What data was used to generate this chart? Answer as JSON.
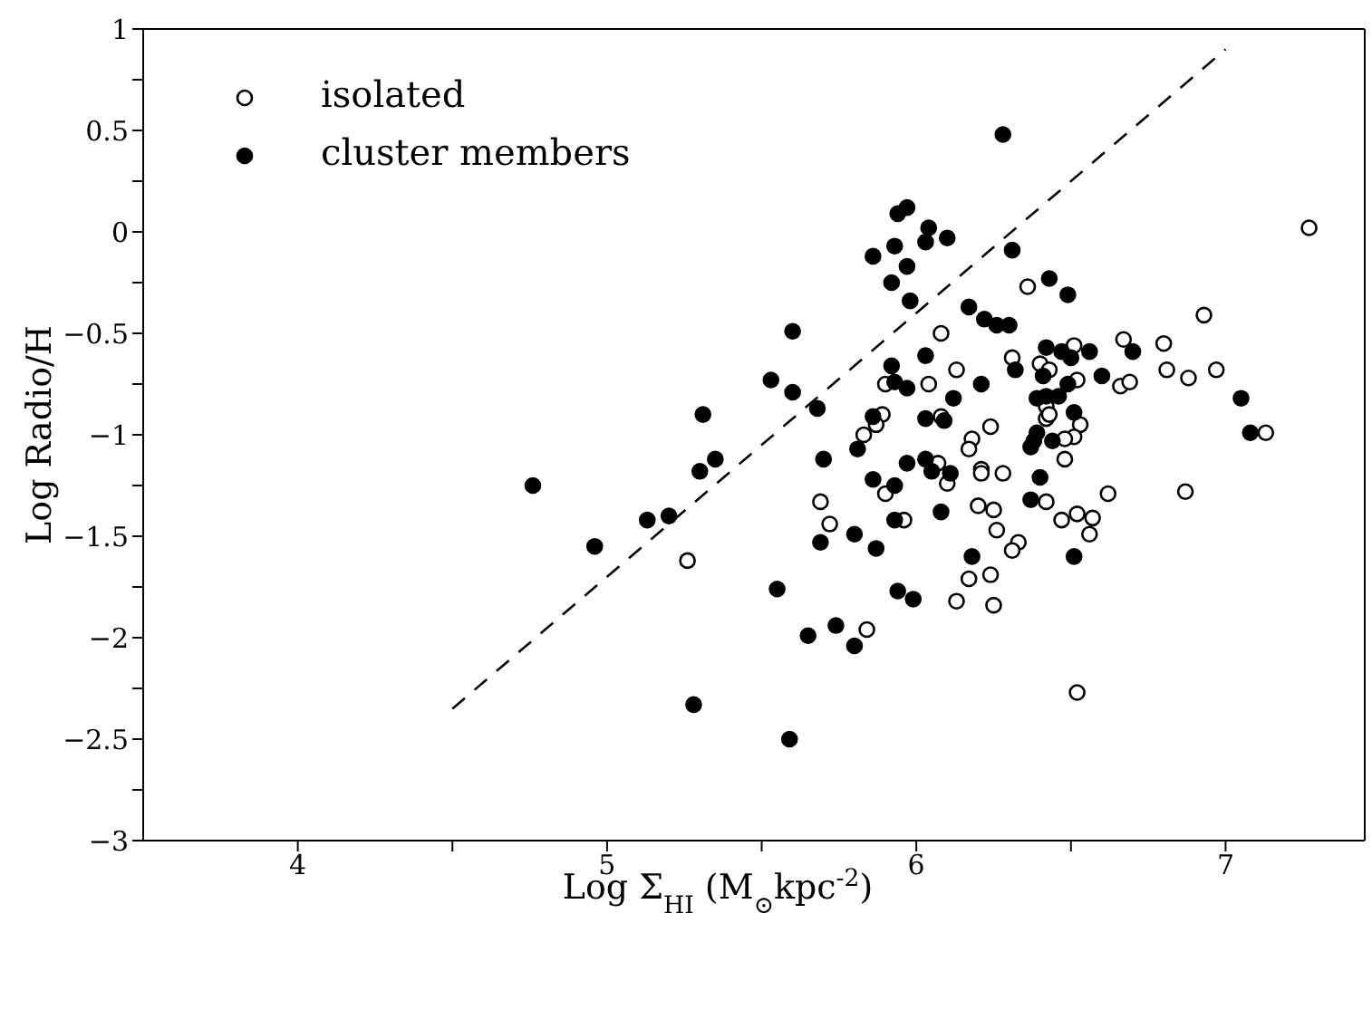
{
  "chart_data": {
    "type": "scatter",
    "xlabel": "Log  Σ$_{HI}$ (M$_{⊙}$kpc$^{-2}$)",
    "ylabel": "Log Radio/H",
    "xlim": [
      3.5,
      7.45
    ],
    "xticks": [
      4,
      5,
      6,
      7,
      {
        "value": 4.5,
        "label": null
      },
      {
        "value": 5.5,
        "label": null
      },
      {
        "value": 6.5,
        "label": null
      }
    ],
    "ylim": [
      -3,
      1
    ],
    "yticks": [
      -3,
      -2.5,
      -2,
      -1.5,
      -1,
      -0.5,
      0,
      0.5,
      1,
      {
        "value": -2.75,
        "label": null
      },
      {
        "value": -2.25,
        "label": null
      },
      {
        "value": -1.75,
        "label": null
      },
      {
        "value": -1.25,
        "label": null
      },
      {
        "value": -0.75,
        "label": null
      },
      {
        "value": -0.25,
        "label": null
      },
      {
        "value": 0.25,
        "label": null
      },
      {
        "value": 0.75,
        "label": null
      }
    ],
    "legend": "top left",
    "marker": "circle",
    "series": [
      {
        "name": "isolated",
        "color": "#ffffff",
        "x": [
          7.27,
          6.36,
          6.93,
          6.08,
          6.67,
          6.8,
          6.51,
          6.31,
          6.4,
          6.43,
          6.13,
          5.9,
          6.04,
          6.52,
          6.66,
          6.69,
          6.81,
          6.88,
          6.97,
          6.42,
          6.42,
          6.43,
          6.08,
          5.89,
          5.87,
          5.83,
          6.24,
          6.18,
          6.17,
          6.53,
          6.51,
          6.48,
          6.48,
          7.13,
          6.07,
          6.21,
          6.21,
          6.28,
          5.26,
          6.1,
          5.9,
          5.69,
          5.72,
          5.96,
          6.2,
          6.25,
          6.42,
          6.62,
          6.87,
          6.47,
          6.52,
          6.57,
          6.56,
          6.26,
          6.33,
          6.31,
          6.24,
          6.17,
          6.13,
          6.25,
          5.84,
          6.52
        ],
        "values": [
          0.02,
          -0.27,
          -0.41,
          -0.5,
          -0.53,
          -0.55,
          -0.56,
          -0.62,
          -0.65,
          -0.68,
          -0.68,
          -0.75,
          -0.75,
          -0.73,
          -0.76,
          -0.74,
          -0.68,
          -0.72,
          -0.68,
          -0.86,
          -0.92,
          -0.9,
          -0.91,
          -0.9,
          -0.95,
          -1.0,
          -0.96,
          -1.02,
          -1.07,
          -0.95,
          -1.01,
          -1.02,
          -1.12,
          -0.99,
          -1.14,
          -1.17,
          -1.19,
          -1.19,
          -1.62,
          -1.24,
          -1.29,
          -1.33,
          -1.44,
          -1.42,
          -1.35,
          -1.37,
          -1.33,
          -1.29,
          -1.28,
          -1.42,
          -1.39,
          -1.41,
          -1.49,
          -1.47,
          -1.53,
          -1.57,
          -1.69,
          -1.71,
          -1.82,
          -1.84,
          -1.96,
          -2.27
        ]
      },
      {
        "name": "cluster members",
        "color": "#000000",
        "x": [
          6.28,
          5.94,
          5.97,
          6.04,
          6.1,
          6.03,
          5.93,
          5.86,
          5.97,
          6.31,
          5.92,
          6.43,
          6.49,
          5.98,
          6.17,
          6.22,
          6.26,
          6.3,
          5.6,
          5.53,
          5.6,
          5.68,
          5.31,
          5.35,
          5.3,
          5.7,
          5.81,
          5.86,
          5.92,
          5.93,
          5.97,
          6.03,
          6.03,
          6.09,
          6.12,
          6.21,
          5.97,
          6.03,
          6.05,
          6.11,
          6.32,
          6.42,
          6.41,
          6.47,
          6.5,
          6.56,
          6.7,
          6.49,
          6.6,
          6.39,
          6.46,
          6.42,
          6.51,
          6.39,
          6.38,
          6.37,
          6.44,
          6.4,
          7.05,
          7.08,
          5.86,
          5.93,
          6.37,
          6.08,
          5.93,
          5.8,
          5.69,
          5.87,
          6.18,
          6.51,
          5.55,
          5.94,
          5.99,
          5.65,
          5.74,
          5.8,
          5.28,
          5.59,
          4.76,
          4.96,
          5.13,
          5.2
        ],
        "values": [
          0.48,
          0.09,
          0.12,
          0.02,
          -0.03,
          -0.05,
          -0.07,
          -0.12,
          -0.17,
          -0.09,
          -0.25,
          -0.23,
          -0.31,
          -0.34,
          -0.37,
          -0.43,
          -0.46,
          -0.46,
          -0.49,
          -0.73,
          -0.79,
          -0.87,
          -0.9,
          -1.12,
          -1.18,
          -1.12,
          -1.07,
          -0.91,
          -0.66,
          -0.74,
          -0.77,
          -0.61,
          -0.92,
          -0.93,
          -0.82,
          -0.75,
          -1.14,
          -1.12,
          -1.18,
          -1.19,
          -0.68,
          -0.57,
          -0.71,
          -0.59,
          -0.62,
          -0.59,
          -0.59,
          -0.75,
          -0.71,
          -0.82,
          -0.81,
          -0.81,
          -0.89,
          -0.99,
          -1.03,
          -1.06,
          -1.03,
          -1.21,
          -0.82,
          -0.99,
          -1.22,
          -1.25,
          -1.32,
          -1.38,
          -1.42,
          -1.49,
          -1.53,
          -1.56,
          -1.6,
          -1.6,
          -1.76,
          -1.77,
          -1.81,
          -1.99,
          -1.94,
          -2.04,
          -2.33,
          -2.5,
          -1.25,
          -1.55,
          -1.42,
          -1.4
        ]
      },
      {
        "type": "line",
        "color": "#000000",
        "line_style": "dashed",
        "marker": "none",
        "x": [
          4.5,
          7.0
        ],
        "values": [
          -2.35,
          0.9
        ]
      }
    ]
  }
}
